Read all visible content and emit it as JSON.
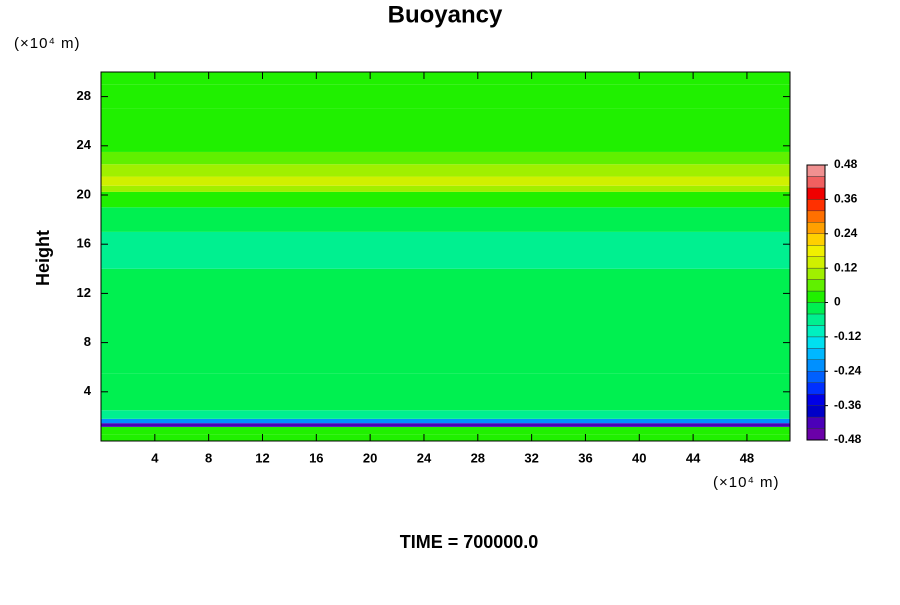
{
  "chart_data": {
    "type": "contour",
    "title": "Buoyancy",
    "y_label": "Height",
    "y_unit": "(×10⁴ m)",
    "x_unit": "(×10⁴ m)",
    "annotation": "TIME = 700000.0",
    "xlim": [
      0,
      51.2
    ],
    "xticks": [
      4,
      8,
      12,
      16,
      20,
      24,
      28,
      32,
      36,
      40,
      44,
      48
    ],
    "ylim": [
      0,
      30
    ],
    "yticks": [
      4,
      8,
      12,
      16,
      20,
      24,
      28
    ],
    "z": [
      0,
      1.0,
      1.3,
      1.6,
      2.0,
      3,
      8,
      12,
      16,
      18,
      20,
      20.5,
      21,
      22,
      23,
      24,
      26,
      28,
      30
    ],
    "values": [
      0,
      0,
      -0.44,
      -0.24,
      -0.06,
      -0.03,
      -0.02,
      -0.02,
      -0.05,
      -0.04,
      0.0,
      0.08,
      0.14,
      0.08,
      0.05,
      0.03,
      0.03,
      0.02,
      0.02
    ],
    "levels": [
      -0.48,
      -0.44,
      -0.4,
      -0.36,
      -0.32,
      -0.28,
      -0.24,
      -0.2,
      -0.16,
      -0.12,
      -0.08,
      -0.04,
      0,
      0.04,
      0.08,
      0.12,
      0.16,
      0.2,
      0.24,
      0.28,
      0.32,
      0.36,
      0.4,
      0.44,
      0.48
    ],
    "colors": [
      "#6a00a8",
      "#4b00b8",
      "#0000c8",
      "#0000e6",
      "#0030ff",
      "#0060ff",
      "#0090ff",
      "#00b8ff",
      "#00e0f0",
      "#00f0c0",
      "#00f090",
      "#00f050",
      "#20f000",
      "#60f000",
      "#a0f000",
      "#d0f000",
      "#f0f000",
      "#ffd000",
      "#ffa000",
      "#ff7000",
      "#ff3000",
      "#f00000",
      "#f06060",
      "#f09090"
    ],
    "colorbar_ticks": [
      0.48,
      0.36,
      0.24,
      0.12,
      0,
      -0.12,
      -0.24,
      -0.36,
      -0.48
    ]
  }
}
